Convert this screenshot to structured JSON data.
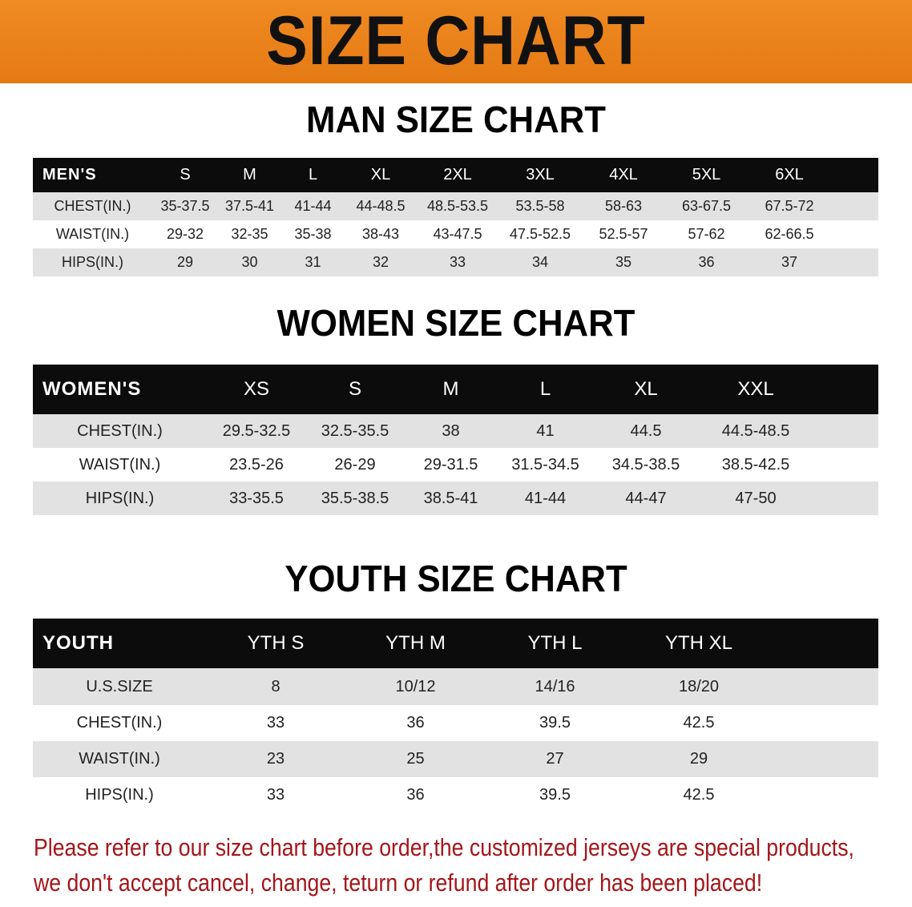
{
  "banner": {
    "title": "SIZE CHART",
    "color": "#ec831b"
  },
  "men": {
    "title": "MAN SIZE CHART",
    "header": [
      "MEN'S",
      "S",
      "M",
      "L",
      "XL",
      "2XL",
      "3XL",
      "4XL",
      "5XL",
      "6XL"
    ],
    "rows": [
      [
        "CHEST(IN.)",
        "35-37.5",
        "37.5-41",
        "41-44",
        "44-48.5",
        "48.5-53.5",
        "53.5-58",
        "58-63",
        "63-67.5",
        "67.5-72"
      ],
      [
        "WAIST(IN.)",
        "29-32",
        "32-35",
        "35-38",
        "38-43",
        "43-47.5",
        "47.5-52.5",
        "52.5-57",
        "57-62",
        "62-66.5"
      ],
      [
        "HIPS(IN.)",
        "29",
        "30",
        "31",
        "32",
        "33",
        "34",
        "35",
        "36",
        "37"
      ]
    ]
  },
  "women": {
    "title": "WOMEN SIZE CHART",
    "header": [
      "WOMEN'S",
      "XS",
      "S",
      "M",
      "L",
      "XL",
      "XXL"
    ],
    "rows": [
      [
        "CHEST(IN.)",
        "29.5-32.5",
        "32.5-35.5",
        "38",
        "41",
        "44.5",
        "44.5-48.5"
      ],
      [
        "WAIST(IN.)",
        "23.5-26",
        "26-29",
        "29-31.5",
        "31.5-34.5",
        "34.5-38.5",
        "38.5-42.5"
      ],
      [
        "HIPS(IN.)",
        "33-35.5",
        "35.5-38.5",
        "38.5-41",
        "41-44",
        "44-47",
        "47-50"
      ]
    ]
  },
  "youth": {
    "title": "YOUTH SIZE CHART",
    "header": [
      "YOUTH",
      "YTH S",
      "YTH M",
      "YTH L",
      "YTH XL"
    ],
    "rows": [
      [
        "U.S.SIZE",
        "8",
        "10/12",
        "14/16",
        "18/20"
      ],
      [
        "CHEST(IN.)",
        "33",
        "36",
        "39.5",
        "42.5"
      ],
      [
        "WAIST(IN.)",
        "23",
        "25",
        "27",
        "29"
      ],
      [
        "HIPS(IN.)",
        "33",
        "36",
        "39.5",
        "42.5"
      ]
    ]
  },
  "note": {
    "line1": "Please refer to our size chart before order,the customized jerseys are special products,",
    "line2": "we don't accept cancel, change, teturn or refund after order has been placed!",
    "color": "#a3161a"
  }
}
